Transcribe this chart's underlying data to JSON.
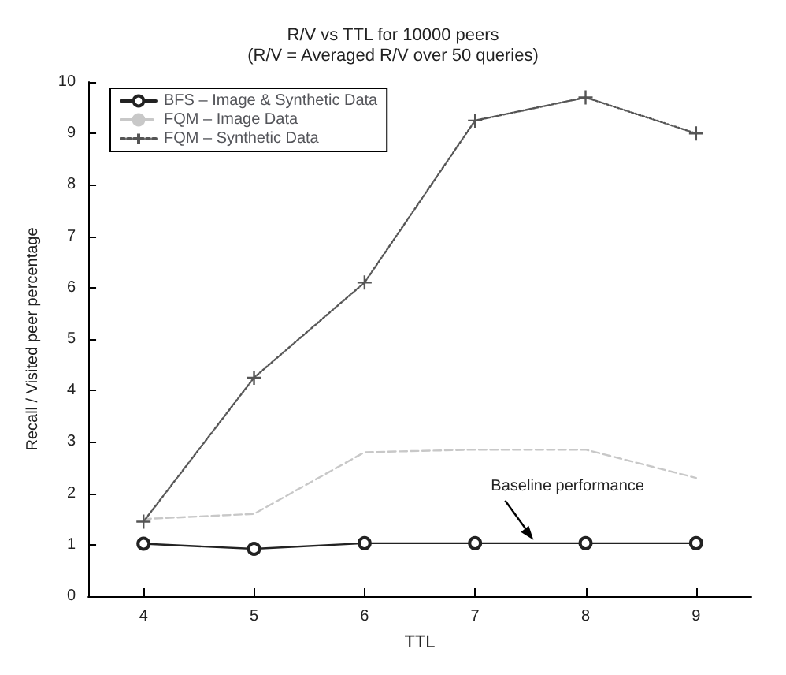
{
  "chart_data": {
    "type": "line",
    "title": "R/V vs TTL for 10000 peers",
    "subtitle": "(R/V = Averaged R/V over 50 queries)",
    "xlabel": "TTL",
    "ylabel": "Recall / Visited peer percentage",
    "x": [
      4,
      5,
      6,
      7,
      8,
      9
    ],
    "xlim": [
      3.5,
      9.5
    ],
    "xticks": [
      4,
      5,
      6,
      7,
      8,
      9
    ],
    "ylim": [
      0,
      10
    ],
    "yticks": [
      0,
      1,
      2,
      3,
      4,
      5,
      6,
      7,
      8,
      9,
      10
    ],
    "series": [
      {
        "name": "BFS – Image & Synthetic Data",
        "color": "#222222",
        "values": [
          1.02,
          0.92,
          1.03,
          1.03,
          1.03,
          1.03
        ],
        "marker": "circle",
        "line_style": "solid"
      },
      {
        "name": "FQM – Image Data",
        "color": "#c8c8c8",
        "values": [
          1.5,
          1.6,
          2.8,
          2.85,
          2.85,
          2.3
        ],
        "marker": "none",
        "line_style": "dashed"
      },
      {
        "name": "FQM – Synthetic Data",
        "color": "#555555",
        "values": [
          1.45,
          4.25,
          6.1,
          9.25,
          9.7,
          9.0
        ],
        "marker": "cross",
        "line_style": "dotted"
      }
    ],
    "annotations": [
      {
        "text": "Baseline performance",
        "x": 7.5,
        "y": 1.0
      }
    ],
    "legend": "top left",
    "grid": false
  }
}
